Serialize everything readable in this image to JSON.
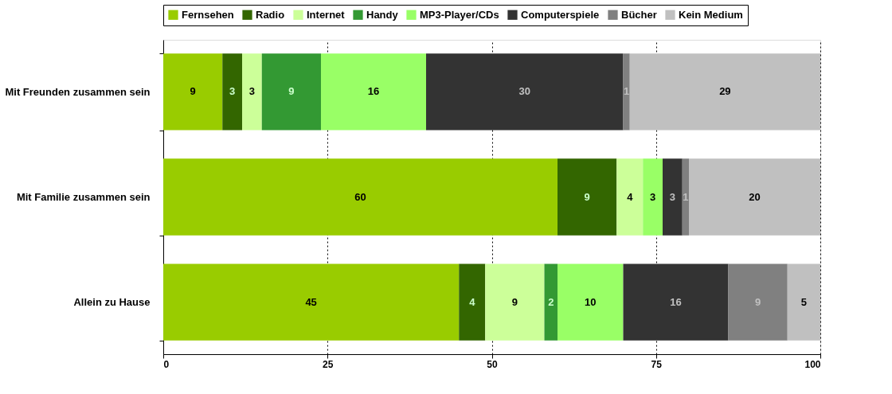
{
  "chart_data": {
    "type": "bar",
    "orientation": "horizontal",
    "stacked": true,
    "grid": "x",
    "legend": "top",
    "categories": [
      "Mit Freunden zusammen sein",
      "Mit Familie zusammen sein",
      "Allein zu Hause"
    ],
    "xlim": [
      0,
      100
    ],
    "xticks": [
      0,
      25,
      50,
      75,
      100
    ],
    "series": [
      {
        "name": "Fernsehen",
        "color": "#99cc00",
        "values": [
          9,
          60,
          45
        ],
        "value_labels": [
          "9",
          "60",
          "45"
        ]
      },
      {
        "name": "Radio",
        "color": "#336600",
        "values": [
          3,
          9,
          4
        ],
        "value_labels": [
          "3",
          "9",
          "4"
        ]
      },
      {
        "name": "Internet",
        "color": "#ccff99",
        "values": [
          3,
          4,
          9
        ],
        "value_labels": [
          "3",
          "4",
          "9"
        ]
      },
      {
        "name": "Handy",
        "color": "#339933",
        "values": [
          9,
          0,
          2
        ],
        "value_labels": [
          "9",
          null,
          "2"
        ]
      },
      {
        "name": "MP3-Player/CDs",
        "color": "#99ff66",
        "values": [
          16,
          3,
          10
        ],
        "value_labels": [
          "16",
          "3",
          "10"
        ]
      },
      {
        "name": "Computerspiele",
        "color": "#333333",
        "values": [
          30,
          3,
          16
        ],
        "value_labels": [
          "30",
          "3",
          "16"
        ]
      },
      {
        "name": "Bücher",
        "color": "#808080",
        "values": [
          1,
          1,
          9
        ],
        "value_labels": [
          "1",
          "1",
          "9"
        ]
      },
      {
        "name": "Kein Medium",
        "color": "#c0c0c0",
        "values": [
          29,
          20,
          5
        ],
        "value_labels": [
          "29",
          "20",
          "5"
        ]
      }
    ]
  }
}
